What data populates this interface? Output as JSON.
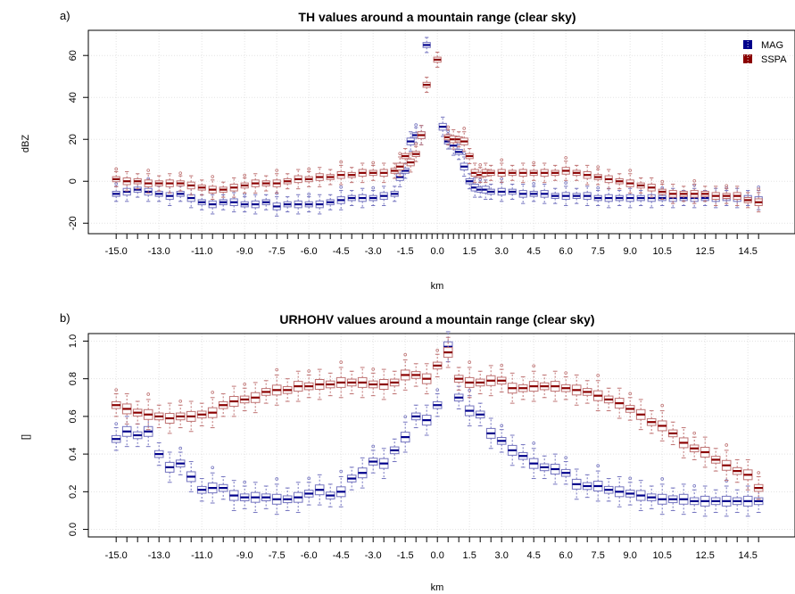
{
  "chart_data": [
    {
      "type": "box",
      "panel_tag": "a)",
      "title": "TH values around a mountain range (clear sky)",
      "xlabel": "km",
      "ylabel": "dBZ",
      "x_tick_labels": [
        "-15.0",
        "-13.0",
        "-11.0",
        "-9.0",
        "-7.5",
        "-6.0",
        "-4.5",
        "-3.0",
        "-1.5",
        "0.0",
        "1.5",
        "3.0",
        "4.5",
        "6.0",
        "7.5",
        "9.0",
        "10.5",
        "12.5",
        "14.5"
      ],
      "yticks": [
        -20,
        0,
        20,
        40,
        60
      ],
      "ylim": [
        -25,
        72
      ],
      "grid": true,
      "legend_position": "top-right",
      "x_positions": [
        -15.0,
        -14.5,
        -14.0,
        -13.5,
        -13.0,
        -12.5,
        -12.0,
        -11.5,
        -11.0,
        -10.5,
        -10.0,
        -9.5,
        -9.0,
        -8.5,
        -8.0,
        -7.5,
        -7.0,
        -6.5,
        -6.0,
        -5.5,
        -5.0,
        -4.5,
        -4.0,
        -3.5,
        -3.0,
        -2.5,
        -2.0,
        -1.75,
        -1.5,
        -1.25,
        -1.0,
        -0.75,
        -0.5,
        -0.25,
        0.0,
        0.25,
        0.5,
        0.75,
        1.0,
        1.25,
        1.5,
        1.75,
        2.0,
        2.25,
        2.5,
        3.0,
        3.5,
        4.0,
        4.5,
        5.0,
        5.5,
        6.0,
        6.5,
        7.0,
        7.5,
        8.0,
        8.5,
        9.0,
        9.5,
        10.0,
        10.5,
        11.0,
        11.5,
        12.0,
        12.5,
        13.0,
        13.5,
        14.0,
        14.5,
        15.0
      ],
      "series": [
        {
          "name": "MAG",
          "color": "#00008B",
          "medians": [
            -6,
            -5,
            -4,
            -5,
            -6,
            -7,
            -6,
            -8,
            -10,
            -11,
            -10,
            -10,
            -11,
            -11,
            -10,
            -12,
            -11,
            -11,
            -11,
            -11,
            -10,
            -9,
            -8,
            -8,
            -8,
            -7,
            -6,
            2,
            5,
            19,
            22,
            22,
            65,
            null,
            null,
            26,
            19,
            17,
            14,
            7,
            0,
            -3,
            -4,
            -4,
            -5,
            -5,
            -5,
            -6,
            -6,
            -6,
            -7,
            -7,
            -7,
            -7,
            -8,
            -8,
            -8,
            -8,
            -8,
            -8,
            -8,
            -8,
            -8,
            -8,
            -8,
            -8,
            -8,
            -8,
            -8,
            -9
          ]
        },
        {
          "name": "SSPA",
          "color": "#8B0000",
          "medians": [
            1,
            0,
            0,
            -1,
            -1,
            -1,
            -1,
            -2,
            -3,
            -4,
            -4,
            -3,
            -2,
            -1,
            -1,
            -1,
            0,
            1,
            1,
            2,
            2,
            3,
            3,
            4,
            4,
            4,
            5,
            7,
            12,
            9,
            13,
            22,
            46,
            null,
            58,
            null,
            21,
            20,
            20,
            19,
            12,
            4,
            3,
            4,
            4,
            4,
            4,
            4,
            4,
            4,
            4,
            5,
            4,
            3,
            2,
            1,
            0,
            -1,
            -2,
            -3,
            -5,
            -6,
            -6,
            -6,
            -6,
            -7,
            -7,
            -7,
            -9,
            -10
          ]
        }
      ]
    },
    {
      "type": "box",
      "panel_tag": "b)",
      "title": "URHOHV values around a mountain range (clear sky)",
      "xlabel": "km",
      "ylabel": "[]",
      "x_tick_labels": [
        "-15.0",
        "-13.0",
        "-11.0",
        "-9.0",
        "-7.5",
        "-6.0",
        "-4.5",
        "-3.0",
        "-1.5",
        "0.0",
        "1.5",
        "3.0",
        "4.5",
        "6.0",
        "7.5",
        "9.0",
        "10.5",
        "12.5",
        "14.5"
      ],
      "yticks": [
        0.0,
        0.2,
        0.4,
        0.6,
        0.8,
        1.0
      ],
      "ylim": [
        -0.04,
        1.04
      ],
      "grid": true,
      "x_positions": [
        -15.0,
        -14.5,
        -14.0,
        -13.5,
        -13.0,
        -12.5,
        -12.0,
        -11.5,
        -11.0,
        -10.5,
        -10.0,
        -9.5,
        -9.0,
        -8.5,
        -8.0,
        -7.5,
        -7.0,
        -6.5,
        -6.0,
        -5.5,
        -5.0,
        -4.5,
        -4.0,
        -3.5,
        -3.0,
        -2.5,
        -2.0,
        -1.5,
        -1.0,
        -0.5,
        0.0,
        0.5,
        1.0,
        1.5,
        2.0,
        2.5,
        3.0,
        3.5,
        4.0,
        4.5,
        5.0,
        5.5,
        6.0,
        6.5,
        7.0,
        7.5,
        8.0,
        8.5,
        9.0,
        9.5,
        10.0,
        10.5,
        11.0,
        11.5,
        12.0,
        12.5,
        13.0,
        13.5,
        14.0,
        14.5,
        15.0
      ],
      "series": [
        {
          "name": "MAG",
          "color": "#00008B",
          "medians": [
            0.48,
            0.52,
            0.5,
            0.52,
            0.4,
            0.33,
            0.35,
            0.28,
            0.21,
            0.22,
            0.22,
            0.18,
            0.17,
            0.17,
            0.17,
            0.16,
            0.16,
            0.17,
            0.19,
            0.21,
            0.18,
            0.2,
            0.27,
            0.3,
            0.36,
            0.35,
            0.42,
            0.49,
            0.6,
            0.58,
            0.66,
            0.97,
            0.7,
            0.63,
            0.61,
            0.51,
            0.47,
            0.42,
            0.39,
            0.35,
            0.33,
            0.32,
            0.3,
            0.24,
            0.23,
            0.23,
            0.21,
            0.2,
            0.19,
            0.18,
            0.17,
            0.16,
            0.16,
            0.16,
            0.15,
            0.15,
            0.15,
            0.15,
            0.15,
            0.15,
            0.15
          ]
        },
        {
          "name": "SSPA",
          "color": "#8B0000",
          "medians": [
            0.66,
            0.64,
            0.62,
            0.61,
            0.6,
            0.59,
            0.6,
            0.6,
            0.61,
            0.62,
            0.66,
            0.68,
            0.69,
            0.7,
            0.73,
            0.74,
            0.74,
            0.76,
            0.76,
            0.77,
            0.77,
            0.78,
            0.78,
            0.78,
            0.77,
            0.77,
            0.78,
            0.82,
            0.82,
            0.8,
            0.87,
            0.94,
            0.8,
            0.78,
            0.78,
            0.79,
            0.79,
            0.75,
            0.75,
            0.76,
            0.76,
            0.76,
            0.75,
            0.74,
            0.73,
            0.71,
            0.69,
            0.67,
            0.64,
            0.61,
            0.57,
            0.55,
            0.51,
            0.46,
            0.43,
            0.41,
            0.37,
            0.34,
            0.31,
            0.29,
            0.22
          ]
        }
      ]
    }
  ]
}
